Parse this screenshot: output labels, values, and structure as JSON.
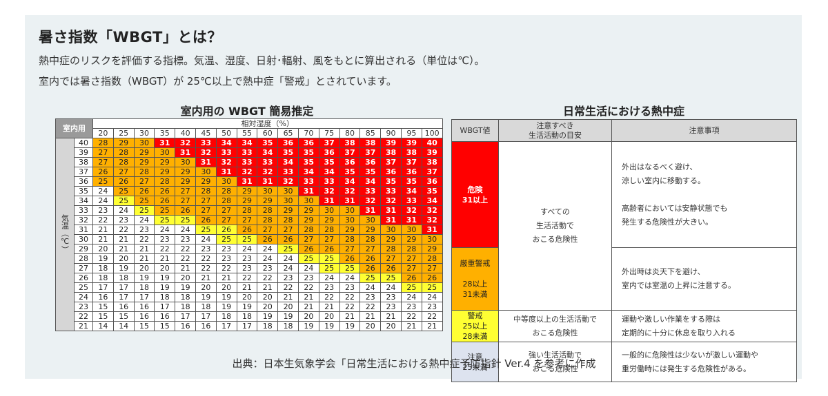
{
  "header": {
    "title": "暑さ指数「WBGT」とは？",
    "line1": "熱中症のリスクを評価する指標。気温、湿度、日射･輻射、風をもとに算出される（単位は℃）。",
    "line2": "室内では暑さ指数（WBGT）が 25℃以上で熱中症「警戒」とされています。"
  },
  "grid": {
    "section_title": "室内用の WBGT 簡易推定",
    "corner_label": "室内用",
    "humidity_label": "相対湿度（%）",
    "temp_axis_label": "気温（℃）",
    "color_levels": {
      "1": "#ffffff",
      "2": "#ffff33",
      "3": "#ffb000",
      "4": "#ff0000"
    },
    "humidity": [
      20,
      25,
      30,
      35,
      40,
      45,
      50,
      55,
      60,
      65,
      70,
      75,
      80,
      85,
      90,
      95,
      100
    ],
    "rows": [
      {
        "t": 40,
        "v": [
          28,
          29,
          30,
          31,
          32,
          33,
          34,
          34,
          35,
          36,
          36,
          37,
          38,
          38,
          39,
          39,
          40
        ],
        "c": [
          3,
          3,
          3,
          4,
          4,
          4,
          4,
          4,
          4,
          4,
          4,
          4,
          4,
          4,
          4,
          4,
          4
        ]
      },
      {
        "t": 39,
        "v": [
          27,
          28,
          29,
          30,
          31,
          32,
          33,
          33,
          34,
          35,
          35,
          36,
          37,
          37,
          38,
          38,
          39
        ],
        "c": [
          3,
          3,
          3,
          3,
          4,
          4,
          4,
          4,
          4,
          4,
          4,
          4,
          4,
          4,
          4,
          4,
          4
        ]
      },
      {
        "t": 38,
        "v": [
          27,
          28,
          29,
          29,
          30,
          31,
          32,
          33,
          33,
          34,
          35,
          35,
          36,
          36,
          37,
          37,
          38
        ],
        "c": [
          3,
          3,
          3,
          3,
          3,
          4,
          4,
          4,
          4,
          4,
          4,
          4,
          4,
          4,
          4,
          4,
          4
        ]
      },
      {
        "t": 37,
        "v": [
          26,
          27,
          28,
          29,
          29,
          30,
          31,
          32,
          32,
          33,
          34,
          34,
          35,
          35,
          36,
          36,
          37
        ],
        "c": [
          3,
          3,
          3,
          3,
          3,
          3,
          4,
          4,
          4,
          4,
          4,
          4,
          4,
          4,
          4,
          4,
          4
        ]
      },
      {
        "t": 36,
        "v": [
          25,
          26,
          27,
          28,
          29,
          29,
          30,
          31,
          31,
          32,
          33,
          33,
          34,
          34,
          35,
          35,
          36
        ],
        "c": [
          3,
          3,
          3,
          3,
          3,
          3,
          3,
          4,
          4,
          4,
          4,
          4,
          4,
          4,
          4,
          4,
          4
        ]
      },
      {
        "t": 35,
        "v": [
          24,
          25,
          26,
          26,
          27,
          28,
          28,
          29,
          30,
          30,
          31,
          32,
          32,
          33,
          33,
          34,
          35
        ],
        "c": [
          1,
          3,
          3,
          3,
          3,
          3,
          3,
          3,
          3,
          3,
          4,
          4,
          4,
          4,
          4,
          4,
          4
        ]
      },
      {
        "t": 34,
        "v": [
          24,
          25,
          25,
          26,
          27,
          27,
          28,
          29,
          29,
          30,
          30,
          31,
          31,
          32,
          32,
          33,
          34
        ],
        "c": [
          1,
          2,
          3,
          3,
          3,
          3,
          3,
          3,
          3,
          3,
          3,
          4,
          4,
          4,
          4,
          4,
          4
        ]
      },
      {
        "t": 33,
        "v": [
          23,
          24,
          25,
          25,
          26,
          27,
          27,
          28,
          28,
          29,
          29,
          30,
          30,
          31,
          31,
          32,
          32
        ],
        "c": [
          1,
          1,
          2,
          3,
          3,
          3,
          3,
          3,
          3,
          3,
          3,
          3,
          3,
          4,
          4,
          4,
          4
        ]
      },
      {
        "t": 32,
        "v": [
          22,
          23,
          24,
          25,
          25,
          26,
          27,
          27,
          28,
          28,
          29,
          29,
          30,
          30,
          31,
          31,
          32
        ],
        "c": [
          1,
          1,
          1,
          2,
          2,
          3,
          3,
          3,
          3,
          3,
          3,
          3,
          3,
          3,
          4,
          4,
          4
        ]
      },
      {
        "t": 31,
        "v": [
          21,
          22,
          23,
          24,
          24,
          25,
          26,
          26,
          27,
          27,
          28,
          28,
          29,
          29,
          30,
          30,
          31
        ],
        "c": [
          1,
          1,
          1,
          1,
          1,
          2,
          2,
          3,
          3,
          3,
          3,
          3,
          3,
          3,
          3,
          3,
          4
        ]
      },
      {
        "t": 30,
        "v": [
          21,
          21,
          22,
          23,
          23,
          24,
          25,
          25,
          26,
          26,
          27,
          27,
          28,
          28,
          29,
          29,
          30
        ],
        "c": [
          1,
          1,
          1,
          1,
          1,
          1,
          2,
          2,
          3,
          3,
          3,
          3,
          3,
          3,
          3,
          3,
          3
        ]
      },
      {
        "t": 29,
        "v": [
          20,
          21,
          21,
          22,
          22,
          23,
          23,
          24,
          24,
          25,
          26,
          26,
          27,
          27,
          28,
          28,
          29
        ],
        "c": [
          1,
          1,
          1,
          1,
          1,
          1,
          1,
          1,
          1,
          2,
          3,
          3,
          3,
          3,
          3,
          3,
          3
        ]
      },
      {
        "t": 28,
        "v": [
          19,
          20,
          21,
          21,
          22,
          22,
          23,
          23,
          24,
          24,
          25,
          25,
          26,
          26,
          27,
          27,
          28
        ],
        "c": [
          1,
          1,
          1,
          1,
          1,
          1,
          1,
          1,
          1,
          1,
          2,
          2,
          3,
          3,
          3,
          3,
          3
        ]
      },
      {
        "t": 27,
        "v": [
          18,
          19,
          20,
          20,
          21,
          22,
          22,
          23,
          23,
          24,
          24,
          25,
          25,
          26,
          26,
          27,
          27
        ],
        "c": [
          1,
          1,
          1,
          1,
          1,
          1,
          1,
          1,
          1,
          1,
          1,
          2,
          2,
          3,
          3,
          3,
          3
        ]
      },
      {
        "t": 26,
        "v": [
          18,
          18,
          19,
          19,
          20,
          21,
          21,
          22,
          22,
          23,
          23,
          24,
          24,
          25,
          25,
          26,
          26
        ],
        "c": [
          1,
          1,
          1,
          1,
          1,
          1,
          1,
          1,
          1,
          1,
          1,
          1,
          1,
          2,
          2,
          3,
          3
        ]
      },
      {
        "t": 25,
        "v": [
          17,
          17,
          18,
          19,
          19,
          20,
          20,
          21,
          21,
          22,
          22,
          23,
          23,
          24,
          24,
          25,
          25
        ],
        "c": [
          1,
          1,
          1,
          1,
          1,
          1,
          1,
          1,
          1,
          1,
          1,
          1,
          1,
          1,
          1,
          2,
          2
        ]
      },
      {
        "t": 24,
        "v": [
          16,
          17,
          17,
          18,
          18,
          19,
          19,
          20,
          20,
          21,
          21,
          22,
          22,
          23,
          23,
          24,
          24
        ],
        "c": [
          1,
          1,
          1,
          1,
          1,
          1,
          1,
          1,
          1,
          1,
          1,
          1,
          1,
          1,
          1,
          1,
          1
        ]
      },
      {
        "t": 23,
        "v": [
          15,
          16,
          16,
          17,
          18,
          18,
          19,
          19,
          20,
          20,
          21,
          21,
          22,
          22,
          23,
          23,
          23
        ],
        "c": [
          1,
          1,
          1,
          1,
          1,
          1,
          1,
          1,
          1,
          1,
          1,
          1,
          1,
          1,
          1,
          1,
          1
        ]
      },
      {
        "t": 22,
        "v": [
          15,
          15,
          16,
          16,
          17,
          17,
          18,
          18,
          19,
          19,
          20,
          20,
          21,
          21,
          21,
          22,
          22
        ],
        "c": [
          1,
          1,
          1,
          1,
          1,
          1,
          1,
          1,
          1,
          1,
          1,
          1,
          1,
          1,
          1,
          1,
          1
        ]
      },
      {
        "t": 21,
        "v": [
          14,
          14,
          15,
          15,
          16,
          16,
          17,
          17,
          18,
          18,
          19,
          19,
          19,
          20,
          20,
          21,
          21
        ],
        "c": [
          1,
          1,
          1,
          1,
          1,
          1,
          1,
          1,
          1,
          1,
          1,
          1,
          1,
          1,
          1,
          1,
          1
        ]
      }
    ]
  },
  "info": {
    "section_title": "日常生活における熱中症",
    "head_wbgt": "WBGT値",
    "head_activity": "注意すべき\n生活活動の目安",
    "head_notes": "注意事項",
    "levels": [
      {
        "name": "危険",
        "range": "31以上",
        "activity": "すべての\n生活活動で\nおこる危険性",
        "notes": "外出はなるべく避け、\n涼しい室内に移動する。\n\n高齢者においては安静状態でも\n発生する危険性が大きい。"
      },
      {
        "name": "厳重警戒",
        "range": "28以上\n31未満",
        "activity": "",
        "notes": "外出時は炎天下を避け、\n室内では室温の上昇に注意する。"
      },
      {
        "name": "警戒",
        "range": "25以上\n28未満",
        "activity": "中等度以上の生活活動で\nおこる危険性",
        "notes": "運動や激しい作業をする際は\n定期的に十分に休息を取り入れる"
      },
      {
        "name": "注意",
        "range": "25未満",
        "activity": "強い生活活動で\nおこる危険性",
        "notes": "一般的に危険性は少ないが激しい運動や\n重労働時には発生する危険性がある。"
      }
    ]
  },
  "footer": {
    "source": "出典：日本生気象学会「日常生活における熱中症予防指針 Ver.4 を参考に作成"
  }
}
